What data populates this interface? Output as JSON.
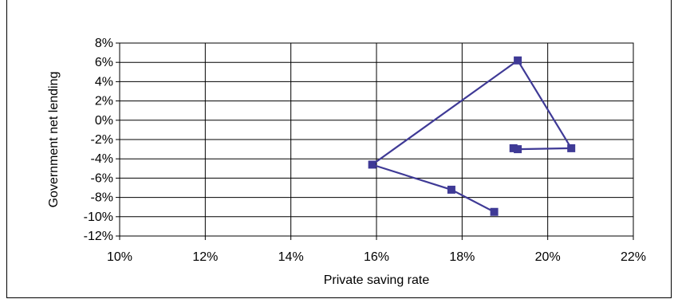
{
  "chart_data": {
    "type": "line",
    "xlabel": "Private saving  rate",
    "ylabel": "Government  net  lending",
    "xlim": [
      0.1,
      0.22
    ],
    "ylim": [
      -0.12,
      0.08
    ],
    "x_ticks": [
      0.1,
      0.12,
      0.14,
      0.16,
      0.18,
      0.2,
      0.22
    ],
    "y_ticks": [
      0.08,
      0.06,
      0.04,
      0.02,
      0.0,
      -0.02,
      -0.04,
      -0.06,
      -0.08,
      -0.1,
      -0.12
    ],
    "x_tick_labels": [
      "10%",
      "12%",
      "14%",
      "16%",
      "18%",
      "20%",
      "22%"
    ],
    "y_tick_labels": [
      "8%",
      "6%",
      "4%",
      "2%",
      "0%",
      "-2%",
      "-4%",
      "-6%",
      "-8%",
      "-10%",
      "-12%"
    ],
    "grid": true,
    "series_color": "#3f3a96",
    "series": [
      {
        "points": [
          {
            "x": 0.1875,
            "y": -0.095
          },
          {
            "x": 0.1775,
            "y": -0.072
          },
          {
            "x": 0.159,
            "y": -0.046
          },
          {
            "x": 0.193,
            "y": 0.062
          },
          {
            "x": 0.2055,
            "y": -0.029
          },
          {
            "x": 0.193,
            "y": -0.03
          },
          {
            "x": 0.192,
            "y": -0.029
          }
        ]
      }
    ]
  }
}
